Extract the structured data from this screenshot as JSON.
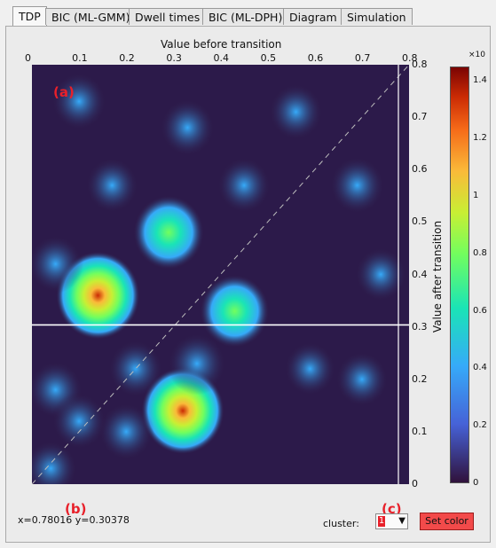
{
  "tabs": [
    {
      "label": "TDP",
      "active": true
    },
    {
      "label": "BIC (ML-GMM)",
      "active": false
    },
    {
      "label": "Dwell times",
      "active": false
    },
    {
      "label": "BIC (ML-DPH)",
      "active": false
    },
    {
      "label": "Diagram",
      "active": false
    },
    {
      "label": "Simulation",
      "active": false
    }
  ],
  "plot": {
    "x_title": "Value before transition",
    "y_title": "Value after transition",
    "x_ticks": [
      "0",
      "0.1",
      "0.2",
      "0.3",
      "0.4",
      "0.5",
      "0.6",
      "0.7",
      "0.8"
    ],
    "y_ticks": [
      "0",
      "0.1",
      "0.2",
      "0.3",
      "0.4",
      "0.5",
      "0.6",
      "0.7",
      "0.8"
    ],
    "xlim": [
      0,
      0.8
    ],
    "ylim": [
      0,
      0.8
    ],
    "cursor_y": 0.30378
  },
  "colorbar": {
    "exponent": "×10",
    "ticks": [
      "0",
      "0.2",
      "0.4",
      "0.6",
      "0.8",
      "1",
      "1.2",
      "1.4"
    ]
  },
  "annotations": {
    "a": "(a)",
    "b": "(b)",
    "c": "(c)"
  },
  "status": {
    "coordinates": "x=0.78016 y=0.30378"
  },
  "cluster": {
    "label": "cluster:",
    "selected": "1"
  },
  "buttons": {
    "set_color": "Set color"
  },
  "colors": {
    "accent": "#e8202a",
    "plot_bg": "#2c1a4a"
  },
  "chart_data": {
    "type": "heatmap",
    "title": "",
    "xlabel": "Value before transition",
    "ylabel": "Value after transition",
    "xlim": [
      0,
      0.8
    ],
    "ylim": [
      0,
      0.8
    ],
    "clim": [
      0,
      1.45
    ],
    "colorbar_label": "×10",
    "peaks": [
      {
        "x": 0.14,
        "y": 0.36,
        "intensity": 1.4
      },
      {
        "x": 0.32,
        "y": 0.14,
        "intensity": 1.35
      },
      {
        "x": 0.29,
        "y": 0.48,
        "intensity": 0.8
      },
      {
        "x": 0.43,
        "y": 0.33,
        "intensity": 0.75
      },
      {
        "x": 0.05,
        "y": 0.18,
        "intensity": 0.3
      },
      {
        "x": 0.1,
        "y": 0.73,
        "intensity": 0.3
      },
      {
        "x": 0.33,
        "y": 0.68,
        "intensity": 0.3
      },
      {
        "x": 0.35,
        "y": 0.23,
        "intensity": 0.4
      },
      {
        "x": 0.69,
        "y": 0.57,
        "intensity": 0.3
      },
      {
        "x": 0.56,
        "y": 0.71,
        "intensity": 0.28
      },
      {
        "x": 0.04,
        "y": 0.03,
        "intensity": 0.25
      },
      {
        "x": 0.22,
        "y": 0.22,
        "intensity": 0.3
      },
      {
        "x": 0.2,
        "y": 0.1,
        "intensity": 0.3
      },
      {
        "x": 0.7,
        "y": 0.2,
        "intensity": 0.25
      },
      {
        "x": 0.74,
        "y": 0.4,
        "intensity": 0.22
      },
      {
        "x": 0.1,
        "y": 0.12,
        "intensity": 0.28
      },
      {
        "x": 0.45,
        "y": 0.57,
        "intensity": 0.27
      },
      {
        "x": 0.59,
        "y": 0.22,
        "intensity": 0.22
      },
      {
        "x": 0.17,
        "y": 0.57,
        "intensity": 0.25
      },
      {
        "x": 0.05,
        "y": 0.42,
        "intensity": 0.3
      }
    ]
  }
}
